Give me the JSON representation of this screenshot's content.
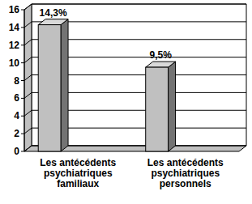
{
  "chart_data": {
    "type": "bar",
    "categories": [
      "Les antécédents\npsychiatriques\nfamiliaux",
      "Les antécédents\npsychiatriques\npersonnels"
    ],
    "values": [
      14.3,
      9.5
    ],
    "value_labels": [
      "14,3%",
      "9,5%"
    ],
    "data_labels": true,
    "color": "#c0c0c0",
    "ylim": [
      0,
      16
    ],
    "yticks": [
      0,
      2,
      4,
      6,
      8,
      10,
      12,
      14,
      16
    ],
    "grid": true
  }
}
